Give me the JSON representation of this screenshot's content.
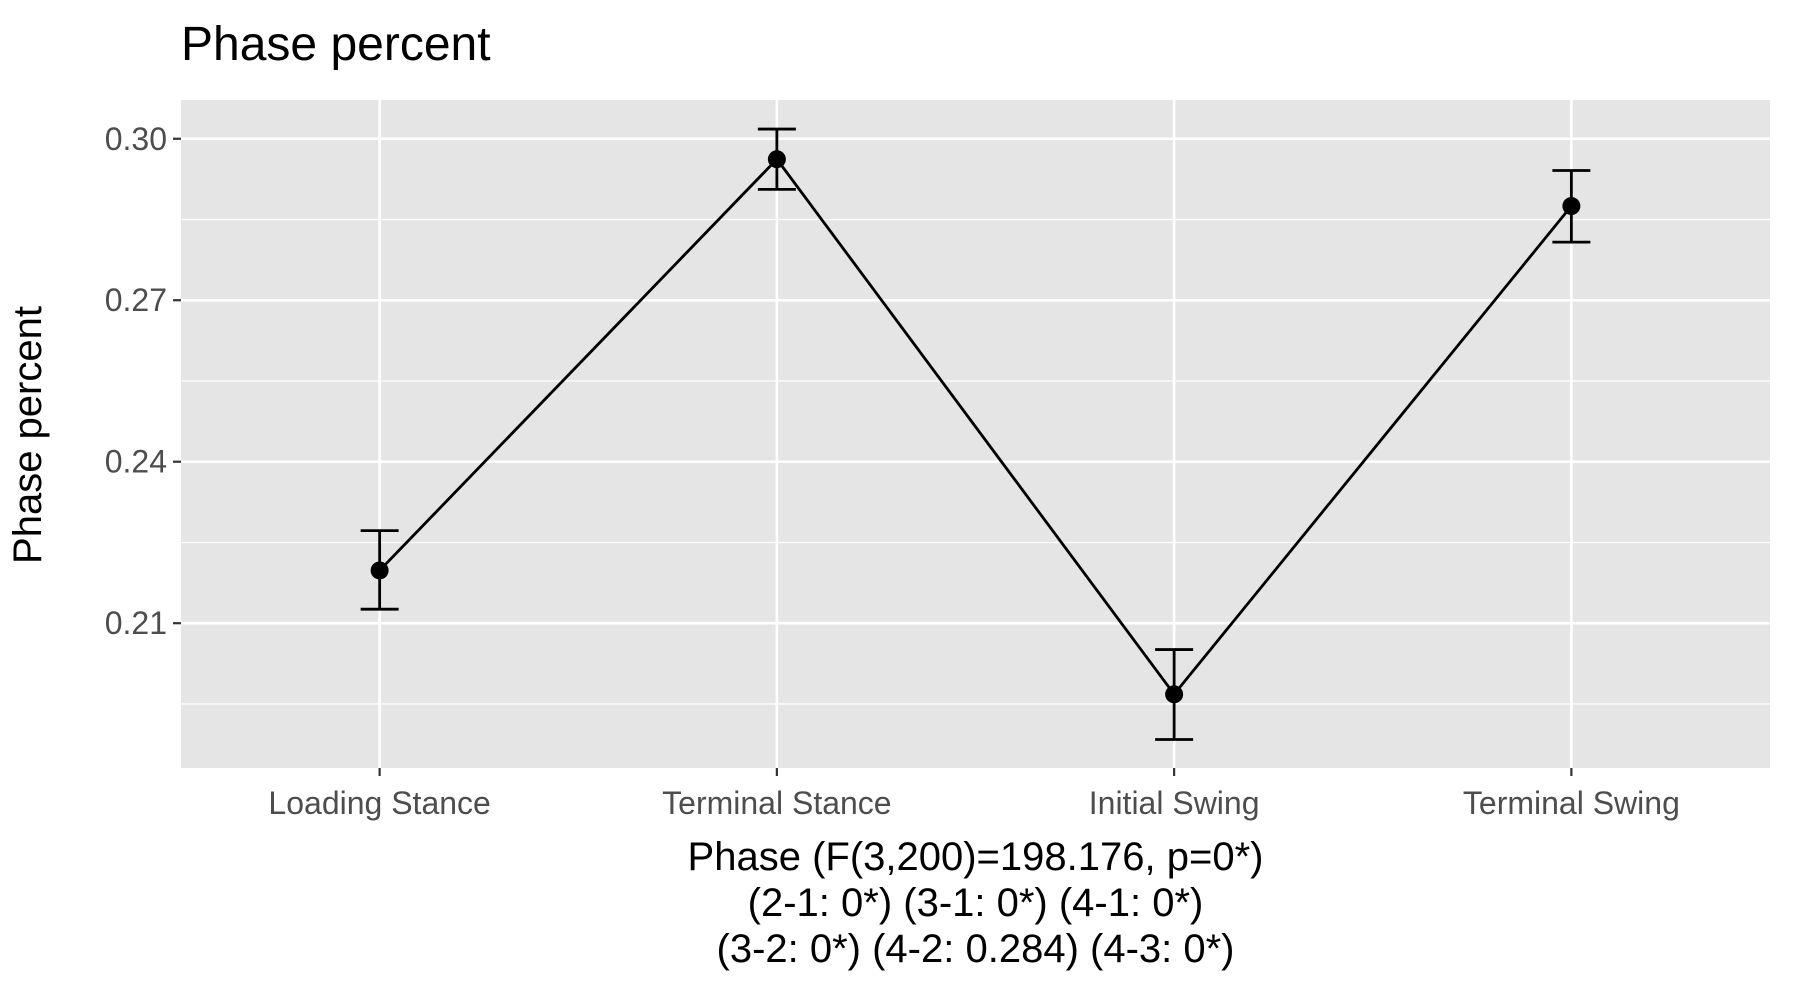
{
  "chart_data": {
    "type": "line",
    "title": "Phase percent",
    "ylabel": "Phase percent",
    "xlabel_lines": [
      "Phase (F(3,200)=198.176, p=0*)",
      "(2-1: 0*) (3-1: 0*) (4-1: 0*)",
      "(3-2: 0*) (4-2: 0.284) (4-3: 0*)"
    ],
    "categories": [
      "Loading Stance",
      "Terminal Stance",
      "Initial Swing",
      "Terminal Swing"
    ],
    "values": [
      0.2198,
      0.2962,
      0.1968,
      0.2875
    ],
    "error_low": [
      0.2126,
      0.2906,
      0.1884,
      0.2808
    ],
    "error_high": [
      0.2272,
      0.3018,
      0.2051,
      0.2941
    ],
    "ylim": [
      0.1831,
      0.3072
    ],
    "yticks": [
      0.21,
      0.24,
      0.27,
      0.3
    ],
    "ytick_labels": [
      "0.21",
      "0.24",
      "0.27",
      "0.30"
    ],
    "grid": true,
    "colors": {
      "panel_background": "#e5e5e5",
      "grid": "#ffffff",
      "line": "#000000",
      "text": "#000000",
      "tick_text": "#4d4d4d",
      "tick_mark": "#333333"
    }
  }
}
